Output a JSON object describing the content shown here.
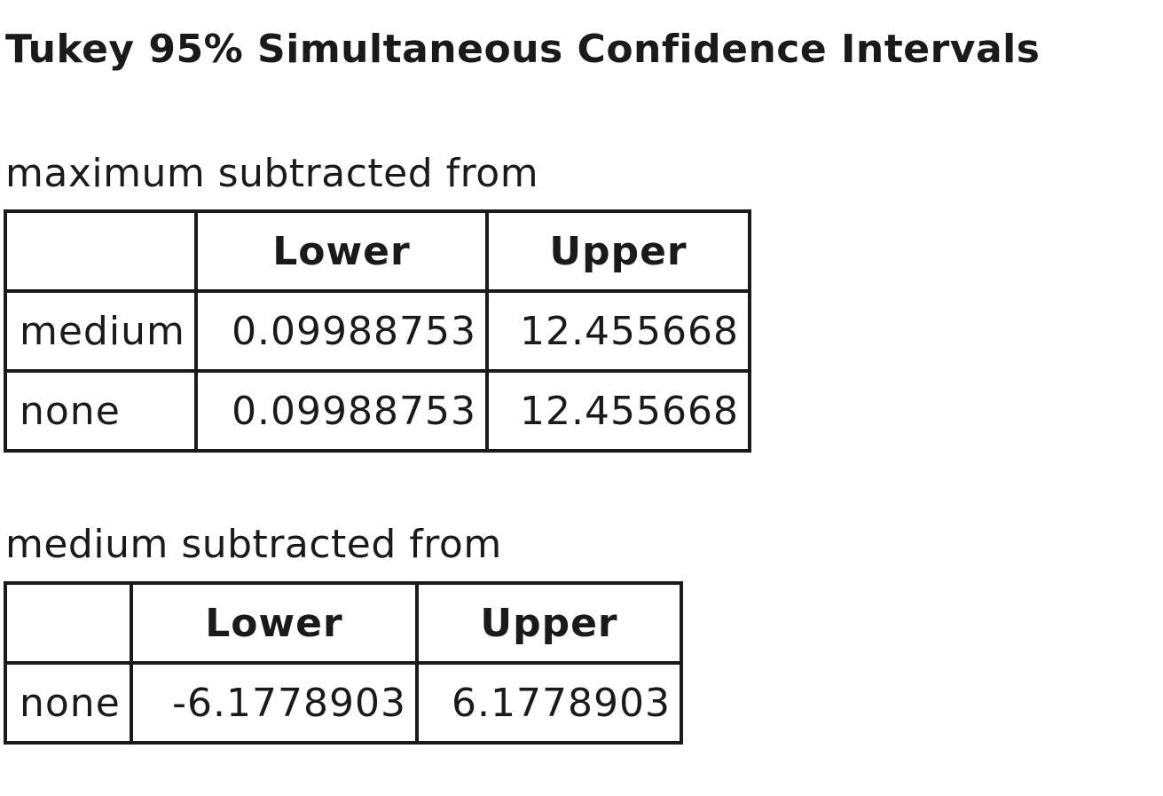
{
  "title": "Tukey 95% Simultaneous Confidence Intervals",
  "sections": [
    {
      "caption": "maximum subtracted from",
      "columns": [
        "",
        "Lower",
        "Upper"
      ],
      "rows": [
        {
          "label": "medium",
          "lower": "0.09988753",
          "upper": "12.455668"
        },
        {
          "label": "none",
          "lower": "0.09988753",
          "upper": "12.455668"
        }
      ]
    },
    {
      "caption": "medium subtracted from",
      "columns": [
        "",
        "Lower",
        "Upper"
      ],
      "rows": [
        {
          "label": "none",
          "lower": "-6.1778903",
          "upper": "6.1778903"
        }
      ]
    }
  ]
}
